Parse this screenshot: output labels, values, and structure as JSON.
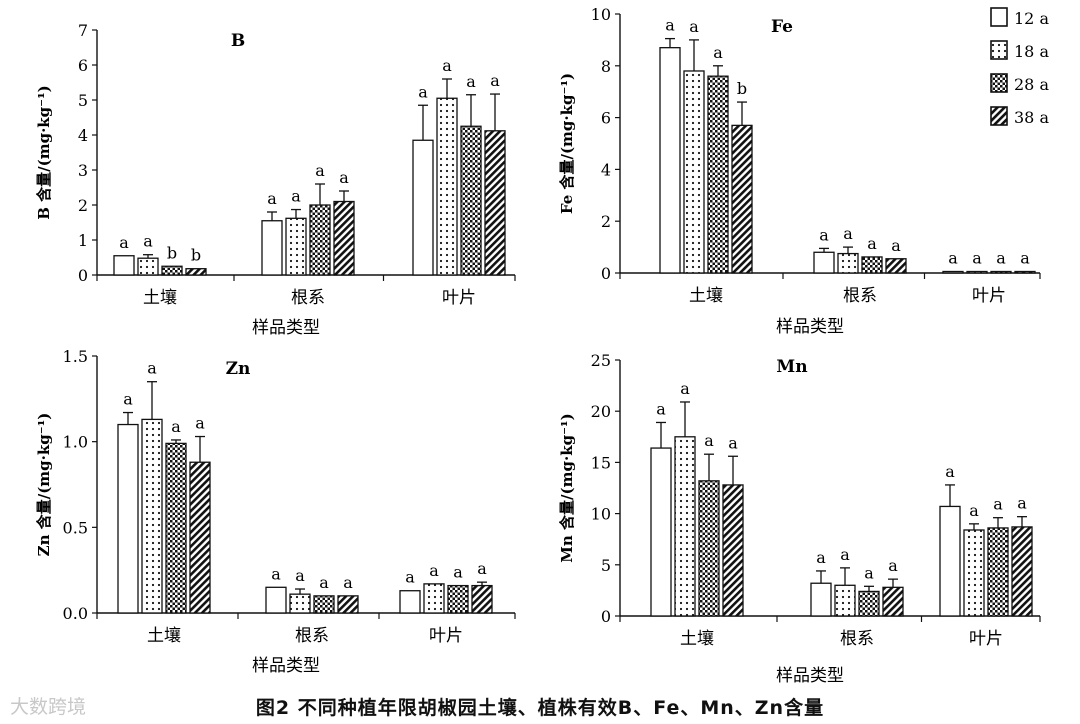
{
  "caption": "图2  不同种植年限胡椒园土壤、植株有效B、Fe、Mn、Zn含量",
  "watermark": "大数跨境",
  "legend": [
    {
      "label": "12 a",
      "pattern": "white"
    },
    {
      "label": "18 a",
      "pattern": "dots"
    },
    {
      "label": "28 a",
      "pattern": "checker"
    },
    {
      "label": "38 a",
      "pattern": "hatch"
    }
  ],
  "chart_data": [
    {
      "type": "bar",
      "title": "B",
      "ylabel": "B 含量/(mg·kg⁻¹)",
      "xlabel": "样品类型",
      "categories": [
        "土壤",
        "根系",
        "叶片"
      ],
      "ylim": [
        0,
        7
      ],
      "yticks": [
        0,
        1,
        2,
        3,
        4,
        5,
        6,
        7
      ],
      "tick_format": "int",
      "series": [
        {
          "name": "12 a",
          "values": [
            0.55,
            1.55,
            3.85
          ],
          "errors": [
            0.0,
            0.25,
            1.0
          ],
          "letters": [
            "a",
            "a",
            "a"
          ]
        },
        {
          "name": "18 a",
          "values": [
            0.48,
            1.62,
            5.05
          ],
          "errors": [
            0.1,
            0.25,
            0.55
          ],
          "letters": [
            "a",
            "a",
            "a"
          ]
        },
        {
          "name": "28 a",
          "values": [
            0.25,
            2.0,
            4.25
          ],
          "errors": [
            0.0,
            0.6,
            0.9
          ],
          "letters": [
            "b",
            "a",
            "a"
          ]
        },
        {
          "name": "38 a",
          "values": [
            0.18,
            2.1,
            4.12
          ],
          "errors": [
            0.0,
            0.3,
            1.05
          ],
          "letters": [
            "b",
            "a",
            "a"
          ]
        }
      ]
    },
    {
      "type": "bar",
      "title": "Fe",
      "ylabel": "Fe 含量/(mg·kg⁻¹)",
      "xlabel": "样品类型",
      "categories": [
        "土壤",
        "根系",
        "叶片"
      ],
      "ylim": [
        0,
        10
      ],
      "yticks": [
        0,
        2,
        4,
        6,
        8,
        10
      ],
      "tick_format": "int",
      "series": [
        {
          "name": "12 a",
          "values": [
            8.7,
            0.8,
            0.05
          ],
          "errors": [
            0.35,
            0.15,
            0.0
          ],
          "letters": [
            "a",
            "a",
            "a"
          ]
        },
        {
          "name": "18 a",
          "values": [
            7.8,
            0.75,
            0.05
          ],
          "errors": [
            1.2,
            0.25,
            0.0
          ],
          "letters": [
            "a",
            "a",
            "a"
          ]
        },
        {
          "name": "28 a",
          "values": [
            7.6,
            0.62,
            0.05
          ],
          "errors": [
            0.4,
            0.0,
            0.0
          ],
          "letters": [
            "a",
            "a",
            "a"
          ]
        },
        {
          "name": "38 a",
          "values": [
            5.7,
            0.55,
            0.05
          ],
          "errors": [
            0.9,
            0.0,
            0.0
          ],
          "letters": [
            "b",
            "a",
            "a"
          ]
        }
      ]
    },
    {
      "type": "bar",
      "title": "Zn",
      "ylabel": "Zn 含量/(mg·kg⁻¹)",
      "xlabel": "样品类型",
      "categories": [
        "土壤",
        "根系",
        "叶片"
      ],
      "ylim": [
        0,
        1.5
      ],
      "yticks": [
        0.0,
        0.5,
        1.0,
        1.5
      ],
      "tick_format": "fixed1",
      "series": [
        {
          "name": "12 a",
          "values": [
            1.1,
            0.15,
            0.13
          ],
          "errors": [
            0.07,
            0.0,
            0.0
          ],
          "letters": [
            "a",
            "a",
            "a"
          ]
        },
        {
          "name": "18 a",
          "values": [
            1.13,
            0.11,
            0.17
          ],
          "errors": [
            0.22,
            0.03,
            0.0
          ],
          "letters": [
            "a",
            "a",
            "a"
          ]
        },
        {
          "name": "28 a",
          "values": [
            0.99,
            0.1,
            0.16
          ],
          "errors": [
            0.02,
            0.0,
            0.0
          ],
          "letters": [
            "a",
            "a",
            "a"
          ]
        },
        {
          "name": "38 a",
          "values": [
            0.88,
            0.1,
            0.16
          ],
          "errors": [
            0.15,
            0.0,
            0.02
          ],
          "letters": [
            "a",
            "a",
            "a"
          ]
        }
      ]
    },
    {
      "type": "bar",
      "title": "Mn",
      "ylabel": "Mn 含量/(mg·kg⁻¹)",
      "xlabel": "样品类型",
      "categories": [
        "土壤",
        "根系",
        "叶片"
      ],
      "ylim": [
        0,
        25
      ],
      "yticks": [
        0,
        5,
        10,
        15,
        20,
        25
      ],
      "tick_format": "int",
      "series": [
        {
          "name": "12 a",
          "values": [
            16.4,
            3.2,
            10.7
          ],
          "errors": [
            2.5,
            1.2,
            2.1
          ],
          "letters": [
            "a",
            "a",
            "a"
          ]
        },
        {
          "name": "18 a",
          "values": [
            17.5,
            3.0,
            8.4
          ],
          "errors": [
            3.4,
            1.7,
            0.6
          ],
          "letters": [
            "a",
            "a",
            "a"
          ]
        },
        {
          "name": "28 a",
          "values": [
            13.2,
            2.4,
            8.6
          ],
          "errors": [
            2.6,
            0.5,
            1.0
          ],
          "letters": [
            "a",
            "a",
            "a"
          ]
        },
        {
          "name": "38 a",
          "values": [
            12.8,
            2.8,
            8.7
          ],
          "errors": [
            2.8,
            0.8,
            1.0
          ],
          "letters": [
            "a",
            "a",
            "a"
          ]
        }
      ]
    }
  ]
}
